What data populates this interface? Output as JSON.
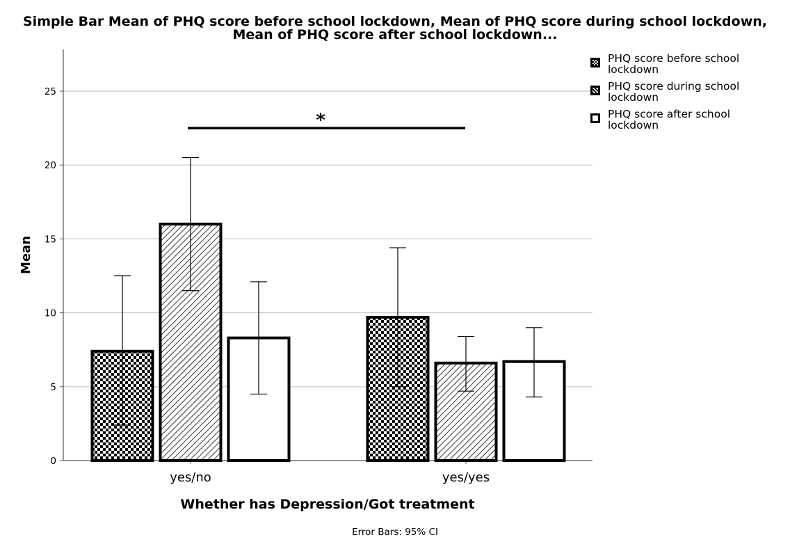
{
  "chart_data": {
    "type": "bar",
    "title_lines": [
      "Simple Bar Mean of PHQ score before school lockdown, Mean of PHQ score during school lockdown,",
      "Mean of PHQ score after school lockdown..."
    ],
    "xlabel": "Whether has Depression/Got treatment",
    "ylabel": "Mean",
    "categories": [
      "yes/no",
      "yes/yes"
    ],
    "ylim": [
      0,
      27.5
    ],
    "yticks": [
      0,
      5,
      10,
      15,
      20,
      25
    ],
    "grid": true,
    "legend_position": "top-right",
    "series": [
      {
        "name": "PHQ score before school lockdown",
        "name_lines": [
          "PHQ score before school",
          "lockdown"
        ],
        "pattern": "checker",
        "values": [
          7.4,
          9.7
        ],
        "ci_low": [
          2.4,
          5.0
        ],
        "ci_high": [
          12.5,
          14.4
        ]
      },
      {
        "name": "PHQ score during school lockdown",
        "name_lines": [
          "PHQ score during school",
          "lockdown"
        ],
        "pattern": "hatch",
        "values": [
          16.0,
          6.6
        ],
        "ci_low": [
          11.5,
          4.7
        ],
        "ci_high": [
          20.5,
          8.4
        ]
      },
      {
        "name": "PHQ score after school lockdown",
        "name_lines": [
          "PHQ score after school",
          "lockdown"
        ],
        "pattern": "white",
        "values": [
          8.3,
          6.7
        ],
        "ci_low": [
          4.5,
          4.3
        ],
        "ci_high": [
          12.1,
          9.0
        ]
      }
    ],
    "annotation": {
      "text": "*",
      "y": 22.5
    },
    "footnote": "Error Bars: 95% CI"
  }
}
